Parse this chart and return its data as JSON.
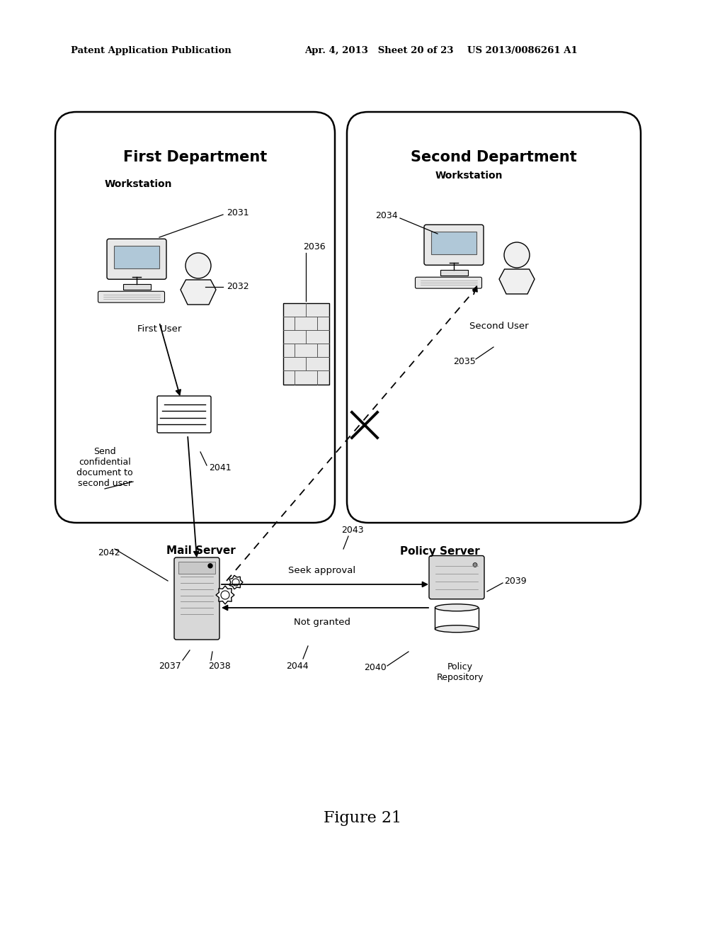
{
  "bg_color": "#ffffff",
  "header_left": "Patent Application Publication",
  "header_mid": "Apr. 4, 2013   Sheet 20 of 23",
  "header_right": "US 2013/0086261 A1",
  "figure_label": "Figure 21",
  "first_dept_label": "First Department",
  "second_dept_label": "Second Department",
  "workstation_label": "Workstation",
  "first_user_label": "First User",
  "second_user_label": "Second User",
  "mail_server_label": "Mail Server",
  "policy_server_label": "Policy Server",
  "policy_repo_label": "Policy\nRepository",
  "seek_approval_label": "Seek approval",
  "not_granted_label": "Not granted",
  "send_conf_label": "Send\nconfidential\ndocument to\nsecond user",
  "ref_2031": "2031",
  "ref_2032": "2032",
  "ref_2034": "2034",
  "ref_2035": "2035",
  "ref_2036": "2036",
  "ref_2037": "2037",
  "ref_2038": "2038",
  "ref_2039": "2039",
  "ref_2040": "2040",
  "ref_2041": "2041",
  "ref_2042": "2042",
  "ref_2043": "2043",
  "ref_2044": "2044"
}
